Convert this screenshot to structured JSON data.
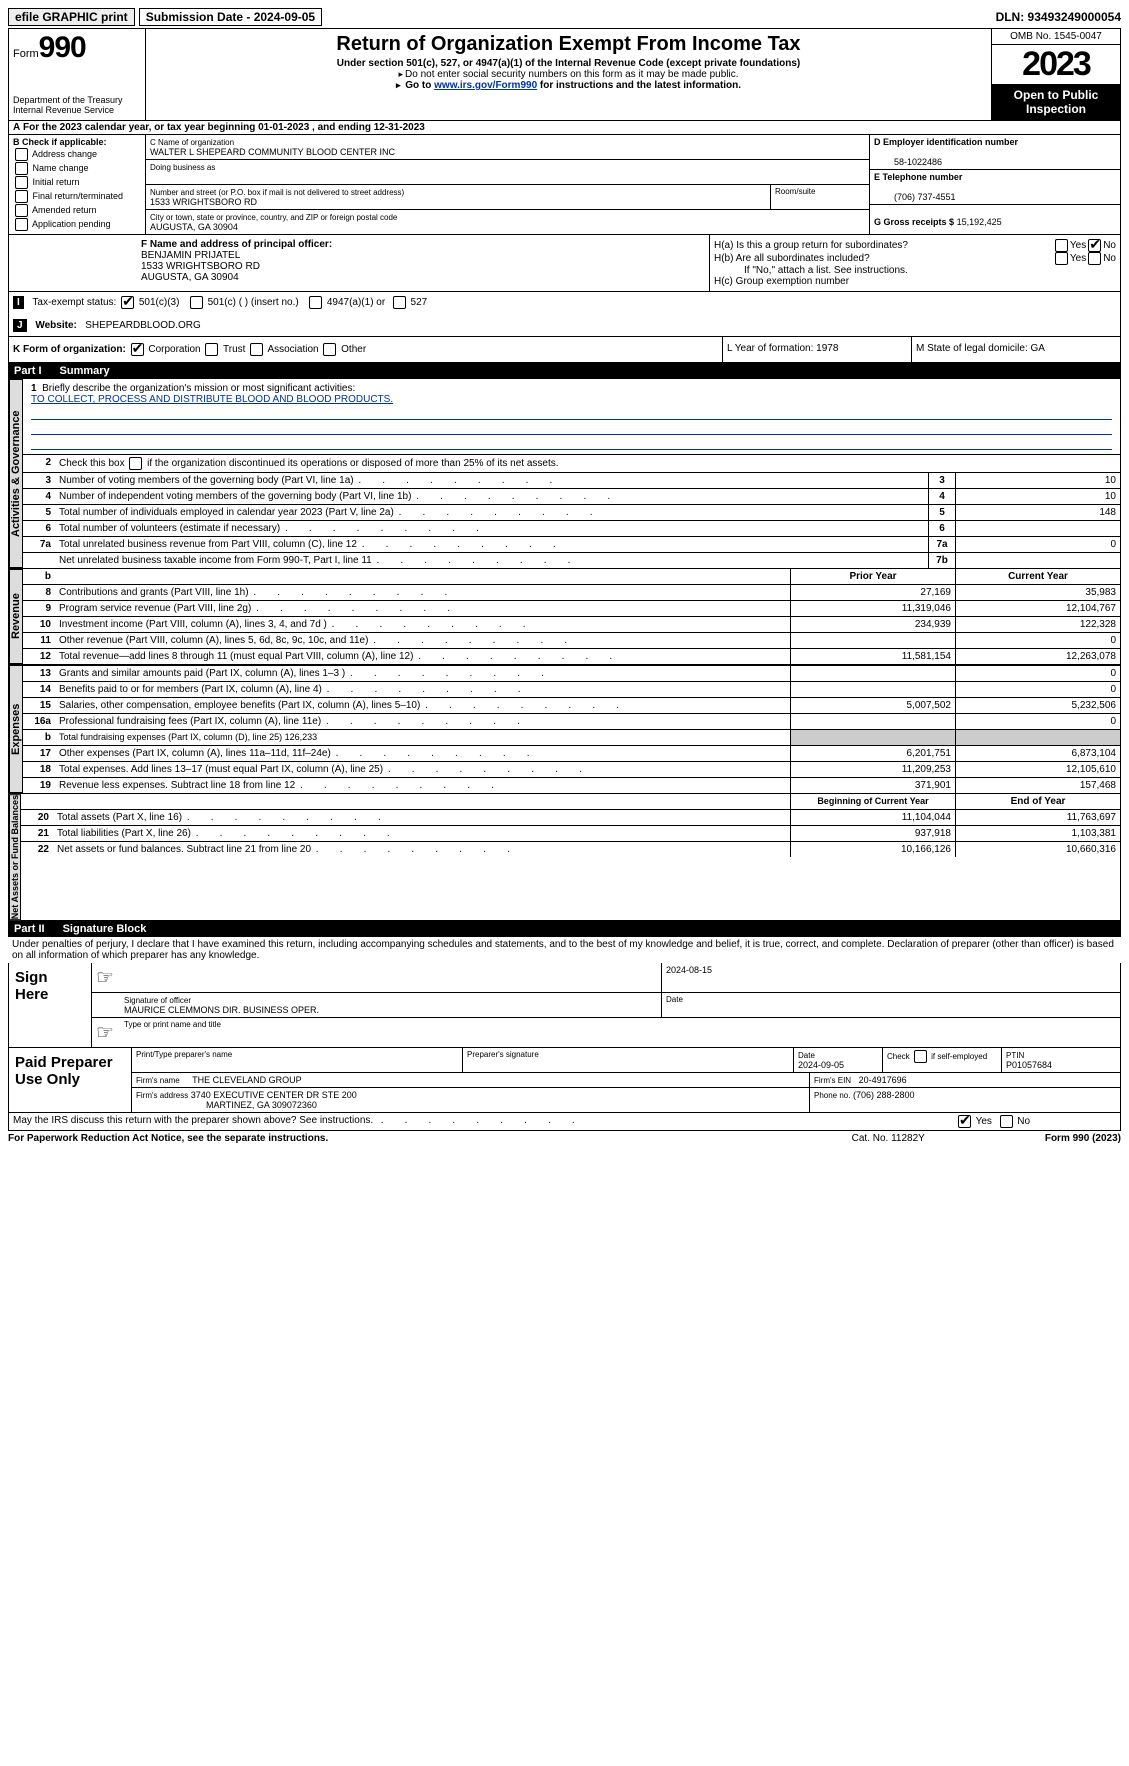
{
  "top": {
    "efile": "efile GRAPHIC print",
    "submission": "Submission Date - 2024-09-05",
    "dln": "DLN: 93493249000054"
  },
  "header": {
    "form_word": "Form",
    "form_num": "990",
    "title": "Return of Organization Exempt From Income Tax",
    "sub1": "Under section 501(c), 527, or 4947(a)(1) of the Internal Revenue Code (except private foundations)",
    "sub2": "Do not enter social security numbers on this form as it may be made public.",
    "sub3_pre": "Go to ",
    "sub3_link": "www.irs.gov/Form990",
    "sub3_post": " for instructions and the latest information.",
    "omb": "OMB No. 1545-0047",
    "year": "2023",
    "open": "Open to Public Inspection",
    "dept": "Department of the Treasury Internal Revenue Service"
  },
  "a_line": "For the 2023 calendar year, or tax year beginning 01-01-2023    , and ending 12-31-2023",
  "b": {
    "hdr": "B Check if applicable:",
    "opts": [
      "Address change",
      "Name change",
      "Initial return",
      "Final return/terminated",
      "Amended return",
      "Application pending"
    ]
  },
  "c": {
    "name_lbl": "C Name of organization",
    "name": "WALTER L SHEPEARD COMMUNITY BLOOD CENTER INC",
    "dba_lbl": "Doing business as",
    "addr_lbl": "Number and street (or P.O. box if mail is not delivered to street address)",
    "room_lbl": "Room/suite",
    "addr": "1533 WRIGHTSBORO RD",
    "city_lbl": "City or town, state or province, country, and ZIP or foreign postal code",
    "city": "AUGUSTA, GA   30904"
  },
  "d": {
    "lbl": "D Employer identification number",
    "val": "58-1022486"
  },
  "e": {
    "lbl": "E Telephone number",
    "val": "(706) 737-4551"
  },
  "g": {
    "lbl": "G Gross receipts $",
    "val": "15,192,425"
  },
  "f": {
    "lbl": "F  Name and address of principal officer:",
    "name": "BENJAMIN PRIJATEL",
    "addr1": "1533 WRIGHTSBORO RD",
    "addr2": "AUGUSTA, GA   30904"
  },
  "h": {
    "a": "H(a)  Is this a group return for subordinates?",
    "b": "H(b)  Are all subordinates included?",
    "note": "If \"No,\" attach a list. See instructions.",
    "c": "H(c)  Group exemption number",
    "yes": "Yes",
    "no": "No"
  },
  "i": {
    "lbl": "Tax-exempt status:",
    "o1": "501(c)(3)",
    "o2": "501(c) (  ) (insert no.)",
    "o3": "4947(a)(1) or",
    "o4": "527"
  },
  "j": {
    "lbl": "Website:",
    "val": "SHEPEARDBLOOD.ORG"
  },
  "k": {
    "lbl": "K Form of organization:",
    "o1": "Corporation",
    "o2": "Trust",
    "o3": "Association",
    "o4": "Other"
  },
  "l": "L Year of formation: 1978",
  "m": "M State of legal domicile: GA",
  "part1": {
    "pt": "Part I",
    "title": "Summary"
  },
  "tabs": {
    "gov": "Activities & Governance",
    "rev": "Revenue",
    "exp": "Expenses",
    "net": "Net Assets or Fund Balances"
  },
  "mission": {
    "q": "Briefly describe the organization's mission or most significant activities:",
    "a": "TO COLLECT, PROCESS AND DISTRIBUTE BLOOD AND BLOOD PRODUCTS."
  },
  "ln2": "Check this box      if the organization discontinued its operations or disposed of more than 25% of its net assets.",
  "gov_lines": [
    {
      "n": "3",
      "d": "Number of voting members of the governing body (Part VI, line 1a)",
      "b": "3",
      "v": "10"
    },
    {
      "n": "4",
      "d": "Number of independent voting members of the governing body (Part VI, line 1b)",
      "b": "4",
      "v": "10"
    },
    {
      "n": "5",
      "d": "Total number of individuals employed in calendar year 2023 (Part V, line 2a)",
      "b": "5",
      "v": "148"
    },
    {
      "n": "6",
      "d": "Total number of volunteers (estimate if necessary)",
      "b": "6",
      "v": ""
    },
    {
      "n": "7a",
      "d": "Total unrelated business revenue from Part VIII, column (C), line 12",
      "b": "7a",
      "v": "0"
    },
    {
      "n": "",
      "d": "Net unrelated business taxable income from Form 990-T, Part I, line 11",
      "b": "7b",
      "v": ""
    }
  ],
  "col_hdr": {
    "b": "b",
    "py": "Prior Year",
    "cy": "Current Year",
    "boy": "Beginning of Current Year",
    "eoy": "End of Year"
  },
  "rev_lines": [
    {
      "n": "8",
      "d": "Contributions and grants (Part VIII, line 1h)",
      "py": "27,169",
      "cy": "35,983"
    },
    {
      "n": "9",
      "d": "Program service revenue (Part VIII, line 2g)",
      "py": "11,319,046",
      "cy": "12,104,767"
    },
    {
      "n": "10",
      "d": "Investment income (Part VIII, column (A), lines 3, 4, and 7d )",
      "py": "234,939",
      "cy": "122,328"
    },
    {
      "n": "11",
      "d": "Other revenue (Part VIII, column (A), lines 5, 6d, 8c, 9c, 10c, and 11e)",
      "py": "",
      "cy": "0"
    },
    {
      "n": "12",
      "d": "Total revenue—add lines 8 through 11 (must equal Part VIII, column (A), line 12)",
      "py": "11,581,154",
      "cy": "12,263,078"
    }
  ],
  "exp_lines": [
    {
      "n": "13",
      "d": "Grants and similar amounts paid (Part IX, column (A), lines 1–3 )",
      "py": "",
      "cy": "0"
    },
    {
      "n": "14",
      "d": "Benefits paid to or for members (Part IX, column (A), line 4)",
      "py": "",
      "cy": "0"
    },
    {
      "n": "15",
      "d": "Salaries, other compensation, employee benefits (Part IX, column (A), lines 5–10)",
      "py": "5,007,502",
      "cy": "5,232,506"
    },
    {
      "n": "16a",
      "d": "Professional fundraising fees (Part IX, column (A), line 11e)",
      "py": "",
      "cy": "0"
    },
    {
      "n": "b",
      "d": "Total fundraising expenses (Part IX, column (D), line 25) 126,233",
      "gray": true
    },
    {
      "n": "17",
      "d": "Other expenses (Part IX, column (A), lines 11a–11d, 11f–24e)",
      "py": "6,201,751",
      "cy": "6,873,104"
    },
    {
      "n": "18",
      "d": "Total expenses. Add lines 13–17 (must equal Part IX, column (A), line 25)",
      "py": "11,209,253",
      "cy": "12,105,610"
    },
    {
      "n": "19",
      "d": "Revenue less expenses. Subtract line 18 from line 12",
      "py": "371,901",
      "cy": "157,468"
    }
  ],
  "net_lines": [
    {
      "n": "20",
      "d": "Total assets (Part X, line 16)",
      "py": "11,104,044",
      "cy": "11,763,697"
    },
    {
      "n": "21",
      "d": "Total liabilities (Part X, line 26)",
      "py": "937,918",
      "cy": "1,103,381"
    },
    {
      "n": "22",
      "d": "Net assets or fund balances. Subtract line 21 from line 20",
      "py": "10,166,126",
      "cy": "10,660,316"
    }
  ],
  "part2": {
    "pt": "Part II",
    "title": "Signature Block"
  },
  "perjury": "Under penalties of perjury, I declare that I have examined this return, including accompanying schedules and statements, and to the best of my knowledge and belief, it is true, correct, and complete. Declaration of preparer (other than officer) is based on all information of which preparer has any knowledge.",
  "sign": {
    "here": "Sign Here",
    "sig_lbl": "Signature of officer",
    "date_lbl": "Date",
    "date": "2024-08-15",
    "officer": "MAURICE CLEMMONS  DIR. BUSINESS OPER.",
    "type_lbl": "Type or print name and title"
  },
  "paid": {
    "lbl": "Paid Preparer Use Only",
    "name_lbl": "Print/Type preparer's name",
    "sig_lbl": "Preparer's signature",
    "date_lbl": "Date",
    "date": "2024-09-05",
    "self_lbl": "Check         if self-employed",
    "ptin_lbl": "PTIN",
    "ptin": "P01057684",
    "firm_lbl": "Firm's name",
    "firm": "THE CLEVELAND GROUP",
    "ein_lbl": "Firm's EIN",
    "ein": "20-4917696",
    "addr_lbl": "Firm's address",
    "addr1": "3740 EXECUTIVE CENTER DR STE 200",
    "addr2": "MARTINEZ, GA   309072360",
    "phone_lbl": "Phone no.",
    "phone": "(706) 288-2800"
  },
  "discuss": "May the IRS discuss this return with the preparer shown above? See instructions.",
  "footer": {
    "l": "For Paperwork Reduction Act Notice, see the separate instructions.",
    "m": "Cat. No. 11282Y",
    "r": "Form 990 (2023)"
  }
}
